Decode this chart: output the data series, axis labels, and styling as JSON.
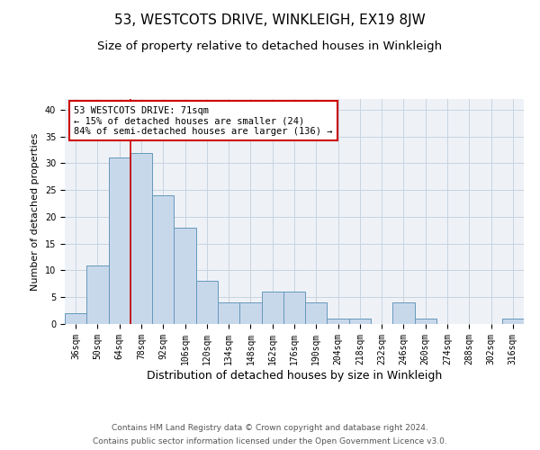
{
  "title": "53, WESTCOTS DRIVE, WINKLEIGH, EX19 8JW",
  "subtitle": "Size of property relative to detached houses in Winkleigh",
  "xlabel": "Distribution of detached houses by size in Winkleigh",
  "ylabel": "Number of detached properties",
  "categories": [
    "36sqm",
    "50sqm",
    "64sqm",
    "78sqm",
    "92sqm",
    "106sqm",
    "120sqm",
    "134sqm",
    "148sqm",
    "162sqm",
    "176sqm",
    "190sqm",
    "204sqm",
    "218sqm",
    "232sqm",
    "246sqm",
    "260sqm",
    "274sqm",
    "288sqm",
    "302sqm",
    "316sqm"
  ],
  "values": [
    2,
    11,
    31,
    32,
    24,
    18,
    8,
    4,
    4,
    6,
    6,
    4,
    1,
    1,
    0,
    4,
    1,
    0,
    0,
    0,
    1
  ],
  "bar_color": "#c8d8eb",
  "bar_edge_color": "#6699bb",
  "property_sqm": 71,
  "annotation_line1": "53 WESTCOTS DRIVE: 71sqm",
  "annotation_line2": "← 15% of detached houses are smaller (24)",
  "annotation_line3": "84% of semi-detached houses are larger (136) →",
  "annotation_box_color": "white",
  "annotation_box_edge_color": "#cc0000",
  "property_line_color": "#cc0000",
  "ylim": [
    0,
    42
  ],
  "yticks": [
    0,
    5,
    10,
    15,
    20,
    25,
    30,
    35,
    40
  ],
  "grid_color": "#c8d4e0",
  "background_color": "#eef2f7",
  "footer_line1": "Contains HM Land Registry data © Crown copyright and database right 2024.",
  "footer_line2": "Contains public sector information licensed under the Open Government Licence v3.0.",
  "title_fontsize": 11,
  "subtitle_fontsize": 9.5,
  "xlabel_fontsize": 9,
  "ylabel_fontsize": 8,
  "tick_fontsize": 7,
  "annotation_fontsize": 7.5,
  "footer_fontsize": 6.5
}
